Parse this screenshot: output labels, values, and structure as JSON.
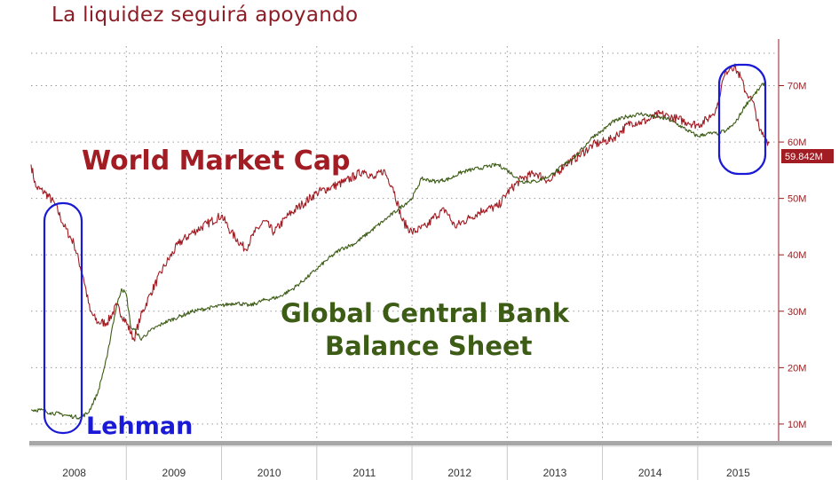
{
  "title": "La liquidez seguirá apoyando",
  "chart_data": {
    "type": "line",
    "x_labels": [
      "2008",
      "2009",
      "2010",
      "2011",
      "2012",
      "2013",
      "2014",
      "2015"
    ],
    "y_ticks": [
      "10M",
      "20M",
      "30M",
      "40M",
      "50M",
      "60M",
      "70M"
    ],
    "y_tick_values": [
      10,
      20,
      30,
      40,
      50,
      60,
      70
    ],
    "ylim": [
      7,
      77
    ],
    "xlim": [
      2008.0,
      2015.85
    ],
    "last_value_label": "59.842M",
    "grid": true,
    "series": [
      {
        "name": "World Market Cap",
        "color": "#a11c23",
        "x": [
          2008.0,
          2008.05,
          2008.15,
          2008.25,
          2008.35,
          2008.45,
          2008.55,
          2008.62,
          2008.7,
          2008.8,
          2008.9,
          2009.0,
          2009.08,
          2009.15,
          2009.25,
          2009.4,
          2009.55,
          2009.7,
          2009.85,
          2010.0,
          2010.1,
          2010.25,
          2010.35,
          2010.45,
          2010.55,
          2010.7,
          2010.85,
          2011.0,
          2011.15,
          2011.3,
          2011.4,
          2011.5,
          2011.6,
          2011.7,
          2011.8,
          2011.9,
          2012.0,
          2012.15,
          2012.25,
          2012.35,
          2012.45,
          2012.6,
          2012.75,
          2012.9,
          2013.0,
          2013.15,
          2013.3,
          2013.45,
          2013.6,
          2013.75,
          2013.9,
          2014.0,
          2014.1,
          2014.2,
          2014.3,
          2014.4,
          2014.5,
          2014.6,
          2014.7,
          2014.8,
          2014.9,
          2015.0,
          2015.1,
          2015.2,
          2015.25,
          2015.3,
          2015.35,
          2015.4,
          2015.45,
          2015.5,
          2015.55,
          2015.6,
          2015.65,
          2015.7,
          2015.75
        ],
        "values": [
          56,
          52,
          51,
          49,
          45,
          42,
          36,
          30,
          28,
          28,
          31,
          28,
          25,
          29,
          33,
          38,
          42,
          44,
          45.5,
          47,
          44,
          41,
          44,
          46,
          44,
          47,
          49,
          51,
          52,
          53,
          54,
          55,
          53.5,
          55,
          52,
          46,
          44,
          45,
          47,
          48,
          45,
          46.5,
          48,
          48.5,
          51,
          53.5,
          54.5,
          53,
          56,
          57.5,
          59.5,
          60,
          60.5,
          62,
          63.5,
          63.5,
          64,
          65,
          64.5,
          64,
          63.5,
          63,
          64,
          66,
          70,
          72.5,
          73.5,
          73,
          71.5,
          69,
          68,
          66,
          62,
          61,
          59.8
        ]
      },
      {
        "name": "Global Central Bank Balance Sheet",
        "color": "#3d5c16",
        "x": [
          2008.0,
          2008.1,
          2008.2,
          2008.3,
          2008.38,
          2008.45,
          2008.52,
          2008.6,
          2008.7,
          2008.8,
          2008.85,
          2008.9,
          2008.95,
          2009.0,
          2009.05,
          2009.1,
          2009.15,
          2009.25,
          2009.4,
          2009.55,
          2009.7,
          2009.85,
          2010.0,
          2010.15,
          2010.3,
          2010.45,
          2010.6,
          2010.75,
          2010.9,
          2011.0,
          2011.1,
          2011.25,
          2011.4,
          2011.55,
          2011.7,
          2011.85,
          2012.0,
          2012.1,
          2012.25,
          2012.4,
          2012.5,
          2012.6,
          2012.75,
          2012.9,
          2013.0,
          2013.15,
          2013.3,
          2013.45,
          2013.6,
          2013.75,
          2013.9,
          2014.0,
          2014.1,
          2014.25,
          2014.4,
          2014.55,
          2014.7,
          2014.85,
          2015.0,
          2015.1,
          2015.2,
          2015.3,
          2015.4,
          2015.5,
          2015.6,
          2015.7
        ],
        "values": [
          12.5,
          12.5,
          12.0,
          11.8,
          11.5,
          11.3,
          11.2,
          12.0,
          15.5,
          22.0,
          27.0,
          31.0,
          34.0,
          33.0,
          27.0,
          26.5,
          25.0,
          26.5,
          28.0,
          29.0,
          30.0,
          30.5,
          31.0,
          31.5,
          31.0,
          32.0,
          32.5,
          34.0,
          36.0,
          37.5,
          39.0,
          41.0,
          42.0,
          44.0,
          46.0,
          48.0,
          50.0,
          53.5,
          53.0,
          53.5,
          54.5,
          55.0,
          55.5,
          56.0,
          55.0,
          53.0,
          53.0,
          54.0,
          56.0,
          58.0,
          61.0,
          62.0,
          63.5,
          64.5,
          65.0,
          64.5,
          64.0,
          62.5,
          61.0,
          61.5,
          61.5,
          62.0,
          63.5,
          66.5,
          68.5,
          70.5
        ]
      }
    ]
  },
  "annotations": {
    "market_cap_label": "World Market Cap",
    "balance_sheet_label_line1": "Global Central Bank",
    "balance_sheet_label_line2": "Balance Sheet",
    "lehman_label": "Lehman"
  }
}
